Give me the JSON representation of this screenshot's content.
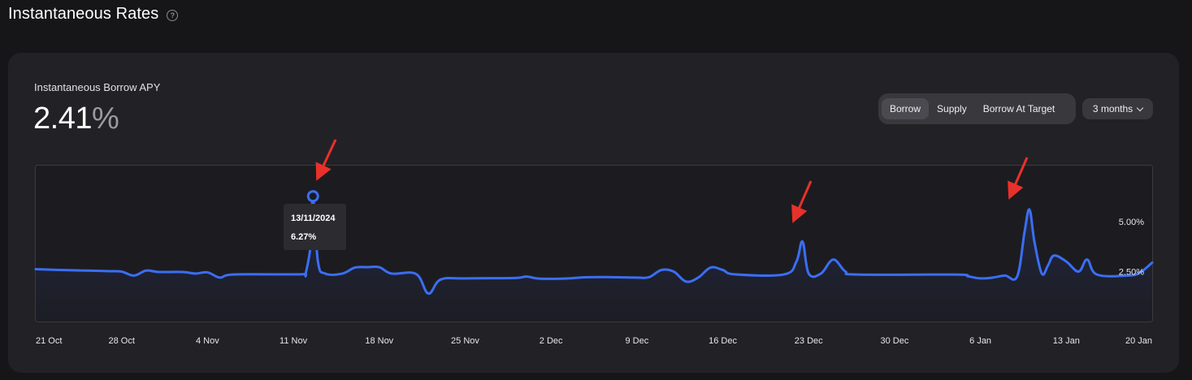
{
  "header": {
    "title": "Instantaneous Rates",
    "help_icon": "question-circle-icon"
  },
  "metric": {
    "label": "Instantaneous Borrow APY",
    "value": "2.41",
    "unit": "%"
  },
  "tabs": [
    {
      "label": "Borrow",
      "active": true
    },
    {
      "label": "Supply",
      "active": false
    },
    {
      "label": "Borrow At Target",
      "active": false
    }
  ],
  "range": {
    "label": "3 months",
    "icon": "chevron-down-icon"
  },
  "tooltip": {
    "date": "13/11/2024",
    "value": "6.27%"
  },
  "colors": {
    "line": "#3b6ef5",
    "annotation": "#e8312a",
    "tooltip_bg": "#2c2c30"
  },
  "chart_data": {
    "type": "line",
    "x_ticks": [
      "21 Oct",
      "28 Oct",
      "4 Nov",
      "11 Nov",
      "18 Nov",
      "25 Nov",
      "2 Dec",
      "9 Dec",
      "16 Dec",
      "23 Dec",
      "30 Dec",
      "6 Jan",
      "13 Jan",
      "20 Jan"
    ],
    "y_ticks": [
      "2.50%",
      "5.00%"
    ],
    "y_tick_values": [
      2.5,
      5.0
    ],
    "ylim": [
      0,
      7.8
    ],
    "xlim_days": [
      0,
      91
    ],
    "series": [
      {
        "values": [
          [
            0,
            2.62
          ],
          [
            2,
            2.58
          ],
          [
            4,
            2.55
          ],
          [
            6,
            2.52
          ],
          [
            7,
            2.5
          ],
          [
            8,
            2.3
          ],
          [
            9,
            2.55
          ],
          [
            10,
            2.48
          ],
          [
            12,
            2.48
          ],
          [
            13,
            2.4
          ],
          [
            14,
            2.46
          ],
          [
            15,
            2.2
          ],
          [
            16,
            2.35
          ],
          [
            20,
            2.36
          ],
          [
            22,
            2.38
          ],
          [
            21.5,
            2.36
          ],
          [
            22,
            2.38
          ],
          [
            22.4,
            3.8
          ],
          [
            22.6,
            6.27
          ],
          [
            23,
            3.0
          ],
          [
            23.6,
            2.4
          ],
          [
            25,
            2.4
          ],
          [
            26,
            2.7
          ],
          [
            27,
            2.72
          ],
          [
            28,
            2.72
          ],
          [
            29,
            2.4
          ],
          [
            31,
            2.38
          ],
          [
            32,
            1.4
          ],
          [
            33,
            2.1
          ],
          [
            35,
            2.16
          ],
          [
            39,
            2.18
          ],
          [
            40,
            2.25
          ],
          [
            41,
            2.15
          ],
          [
            43,
            2.15
          ],
          [
            45,
            2.22
          ],
          [
            47,
            2.22
          ],
          [
            49,
            2.2
          ],
          [
            50,
            2.22
          ],
          [
            51,
            2.58
          ],
          [
            52,
            2.5
          ],
          [
            53,
            2.0
          ],
          [
            54,
            2.2
          ],
          [
            55,
            2.7
          ],
          [
            56,
            2.58
          ],
          [
            57,
            2.36
          ],
          [
            61,
            2.36
          ],
          [
            62,
            3.0
          ],
          [
            62.5,
            4.0
          ],
          [
            63,
            2.4
          ],
          [
            64,
            2.4
          ],
          [
            65,
            3.1
          ],
          [
            66,
            2.5
          ],
          [
            67,
            2.35
          ],
          [
            75,
            2.35
          ],
          [
            76,
            2.26
          ],
          [
            77,
            2.16
          ],
          [
            78,
            2.2
          ],
          [
            79,
            2.3
          ],
          [
            80,
            2.26
          ],
          [
            80.6,
            4.5
          ],
          [
            81,
            5.6
          ],
          [
            81.4,
            4.0
          ],
          [
            82,
            2.4
          ],
          [
            82.5,
            2.8
          ],
          [
            83,
            3.3
          ],
          [
            84,
            3.0
          ],
          [
            85,
            2.5
          ],
          [
            85.7,
            3.1
          ],
          [
            86.5,
            2.35
          ],
          [
            89,
            2.3
          ],
          [
            90,
            2.45
          ],
          [
            91,
            2.95
          ]
        ]
      }
    ],
    "grid": false,
    "tooltip_point": {
      "x_day": 22.6,
      "y": 6.27
    }
  }
}
